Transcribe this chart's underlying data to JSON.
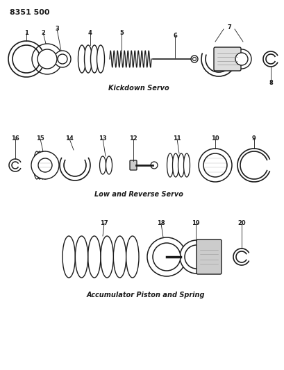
{
  "part_number": "8351 500",
  "background_color": "#ffffff",
  "line_color": "#1a1a1a",
  "section1_label": "Kickdown Servo",
  "section2_label": "Low and Reverse Servo",
  "section3_label": "Accumulator Piston and Spring",
  "fig_width": 4.1,
  "fig_height": 5.33,
  "dpi": 100
}
